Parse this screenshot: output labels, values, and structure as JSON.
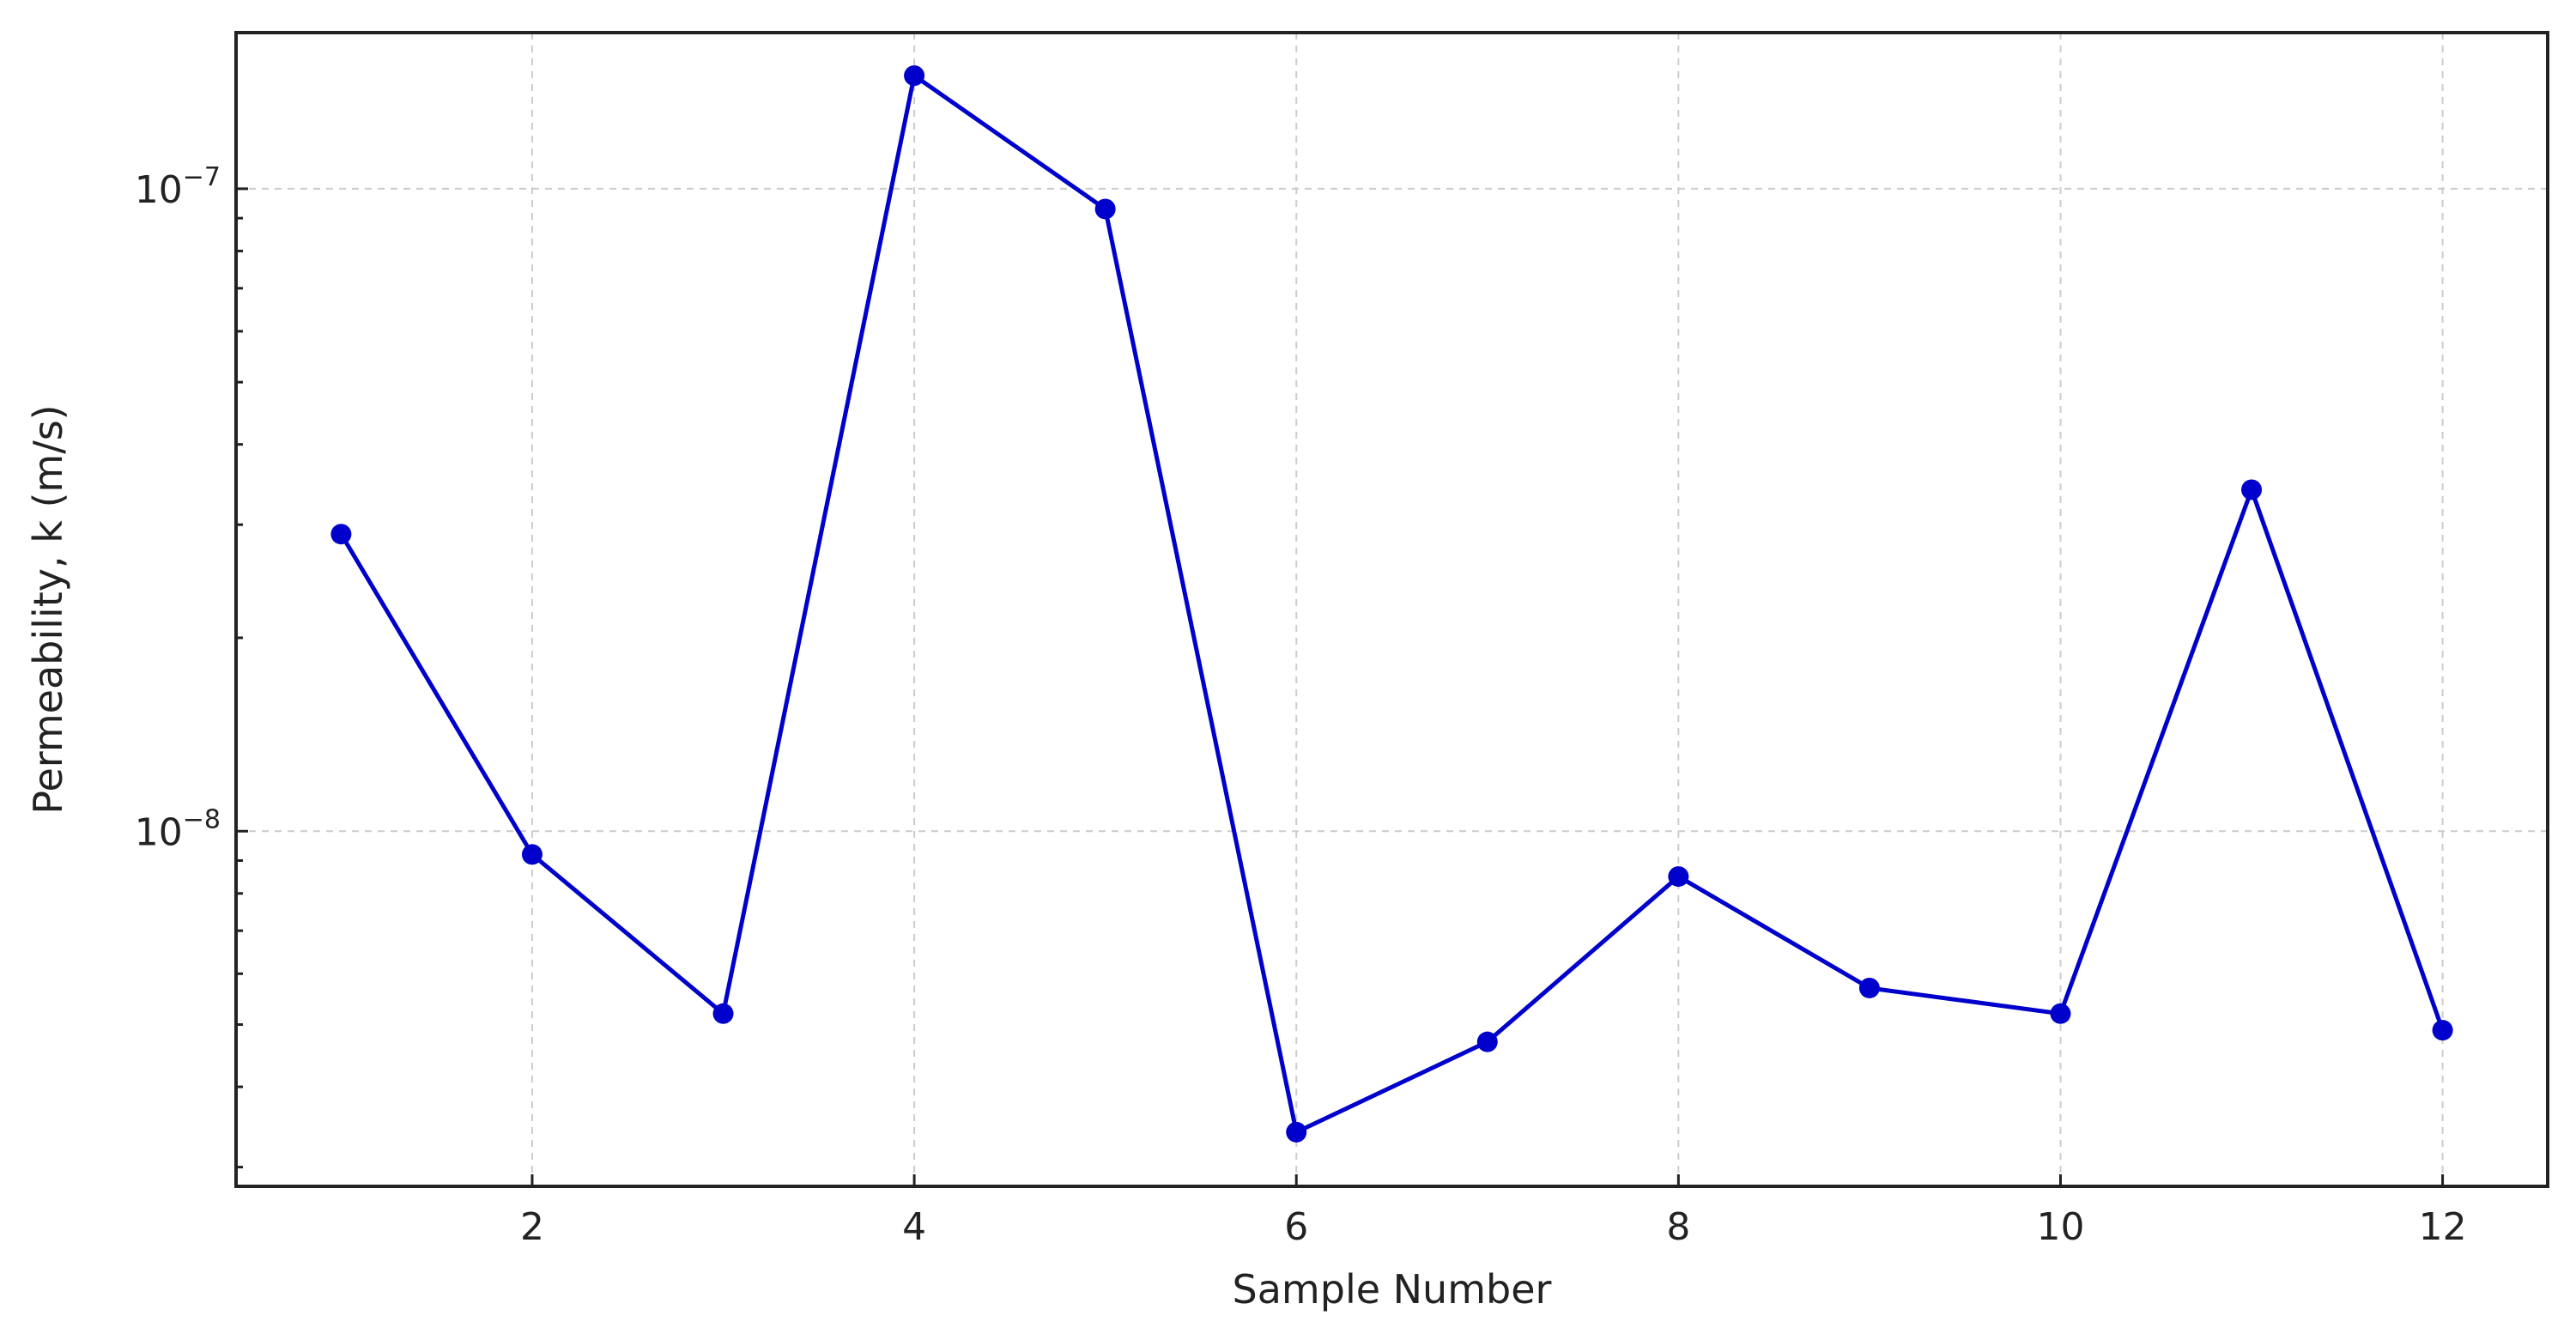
{
  "chart_data": {
    "type": "line",
    "title": "",
    "xlabel": "Sample Number",
    "ylabel": "Permeability, k (m/s)",
    "x": [
      1,
      2,
      3,
      4,
      5,
      6,
      7,
      8,
      9,
      10,
      11,
      12
    ],
    "series": [
      {
        "name": "",
        "color": "#0000cc",
        "marker": "circle",
        "values": [
          2.9e-08,
          9.2e-09,
          5.2e-09,
          1.5e-07,
          9.3e-08,
          3.4e-09,
          4.7e-09,
          8.5e-09,
          5.7e-09,
          5.2e-09,
          3.4e-08,
          4.9e-09
        ]
      }
    ],
    "xlim": [
      0.45,
      12.55
    ],
    "ylim": [
      2.8e-09,
      1.75e-07
    ],
    "yscale": "log",
    "x_ticks": [
      {
        "value": 2,
        "label": "2"
      },
      {
        "value": 4,
        "label": "4"
      },
      {
        "value": 6,
        "label": "6"
      },
      {
        "value": 8,
        "label": "8"
      },
      {
        "value": 10,
        "label": "10"
      },
      {
        "value": 12,
        "label": "12"
      }
    ],
    "y_ticks": [
      {
        "value": 1e-08,
        "base": "10",
        "exp": "−8"
      },
      {
        "value": 1e-07,
        "base": "10",
        "exp": "−7"
      }
    ],
    "y_minor_ticks": [
      3e-09,
      4e-09,
      5e-09,
      6e-09,
      7e-09,
      8e-09,
      9e-09,
      2e-08,
      3e-08,
      4e-08,
      5e-08,
      6e-08,
      7e-08,
      8e-08,
      9e-08
    ],
    "grid": true,
    "legend": "none"
  }
}
